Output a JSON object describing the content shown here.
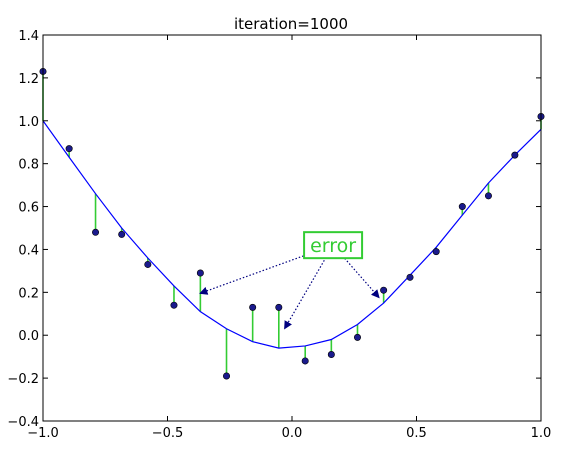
{
  "chart_data": {
    "type": "scatter",
    "title": "iteration=1000",
    "xlabel": "",
    "ylabel": "",
    "xlim": [
      -1.0,
      1.0
    ],
    "ylim": [
      -0.4,
      1.4
    ],
    "grid": false,
    "x_ticks": [
      -1.0,
      -0.5,
      0.0,
      0.5,
      1.0
    ],
    "x_tick_labels": [
      "−1.0",
      "−0.5",
      "0.0",
      "0.5",
      "1.0"
    ],
    "y_ticks": [
      -0.4,
      -0.2,
      0.0,
      0.2,
      0.4,
      0.6,
      0.8,
      1.0,
      1.2,
      1.4
    ],
    "y_tick_labels": [
      "−0.4",
      "−0.2",
      "0.0",
      "0.2",
      "0.4",
      "0.6",
      "0.8",
      "1.0",
      "1.2",
      "1.4"
    ],
    "series": [
      {
        "kind": "points",
        "color": "#1a1a8c",
        "x": [
          -1.0,
          -0.895,
          -0.789,
          -0.684,
          -0.579,
          -0.474,
          -0.368,
          -0.263,
          -0.158,
          -0.053,
          0.053,
          0.158,
          0.263,
          0.368,
          0.474,
          0.579,
          0.684,
          0.789,
          0.895,
          1.0
        ],
        "y": [
          1.23,
          0.87,
          0.48,
          0.47,
          0.33,
          0.14,
          0.29,
          -0.19,
          0.13,
          0.13,
          -0.12,
          -0.09,
          -0.01,
          0.21,
          0.27,
          0.39,
          0.6,
          0.65,
          0.84,
          1.02
        ]
      },
      {
        "kind": "fit_line",
        "color": "#0000ff",
        "x": [
          -1.0,
          -0.895,
          -0.789,
          -0.684,
          -0.579,
          -0.474,
          -0.368,
          -0.263,
          -0.158,
          -0.053,
          0.053,
          0.158,
          0.263,
          0.368,
          0.474,
          0.579,
          0.684,
          0.789,
          0.895,
          1.0
        ],
        "y": [
          1.0,
          0.83,
          0.66,
          0.5,
          0.36,
          0.23,
          0.11,
          0.03,
          -0.03,
          -0.06,
          -0.05,
          -0.02,
          0.05,
          0.15,
          0.28,
          0.41,
          0.56,
          0.71,
          0.84,
          0.96
        ]
      }
    ],
    "residual_color": "#33cc33",
    "annotation": {
      "text": "error",
      "color": "#33cc33",
      "anchor": [
        0.165,
        0.42
      ],
      "targets": [
        [
          -0.37,
          0.195
        ],
        [
          -0.03,
          0.03
        ],
        [
          0.35,
          0.175
        ]
      ]
    }
  }
}
